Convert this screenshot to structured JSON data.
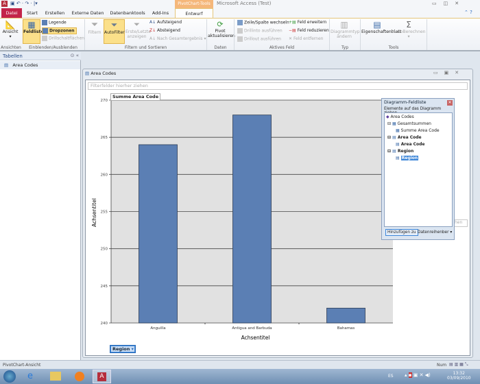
{
  "app": {
    "title": "Microsoft Access (Test)",
    "context_tab": "PivotChart-Tools"
  },
  "tabs": [
    "Datei",
    "Start",
    "Erstellen",
    "Externe Daten",
    "Datenbanktools",
    "Add-Ins",
    "Entwurf"
  ],
  "ribbon": {
    "ansicht": "Ansicht",
    "feldliste": "Feldliste",
    "legende": "Legende",
    "dropzonen": "Dropzonen",
    "drillschaltflaechen": "Drillschaltflächen",
    "filtern": "Filtern",
    "autofilter": "AutoFilter",
    "erste_letzte": "Erste/Letzte anzeigen",
    "aufsteigend": "Aufsteigend",
    "absteigend": "Absteigend",
    "nach_gesamt": "Nach Gesamtergebnis",
    "pivot": "Pivot aktualisieren",
    "zeile_spalte": "Zeile/Spalte wechseln",
    "drillinto": "Drillinto ausführen",
    "drillout": "Drillout ausführen",
    "feld_erweitern": "Feld erweitern",
    "feld_reduzieren": "Feld reduzieren",
    "feld_entfernen": "Feld entfernen",
    "diagrammtyp": "Diagrammtyp ändern",
    "eigenschaften": "Eigenschaftenblatt",
    "autoberechnen": "AutoBerechnen",
    "groups": [
      "Ansichten",
      "Einblenden/Ausblenden",
      "Filtern und Sortieren",
      "Daten",
      "Aktives Feld",
      "Typ",
      "Tools"
    ]
  },
  "nav": {
    "header": "Tabellen",
    "items": [
      "Area Codes"
    ]
  },
  "document": {
    "title": "Area Codes",
    "filter_placeholder": "Filterfelder hierher ziehen",
    "series_drop_partial": "hen",
    "region_button": "Region"
  },
  "chart_data": {
    "type": "bar",
    "data_field": "Summe Area Code",
    "categories": [
      "Anguilla",
      "Antigua and Barbuda",
      "Bahamas"
    ],
    "values": [
      264,
      268,
      242
    ],
    "xlabel": "Achsentitel",
    "ylabel": "Achsentitel",
    "ylim": [
      240,
      270
    ],
    "yticks": [
      240,
      245,
      250,
      255,
      260,
      265,
      270
    ],
    "bar_color": "#5b7fb4",
    "grid": true
  },
  "fieldlist": {
    "title": "Diagramm-Feldliste",
    "hint": "Elemente auf das Diagramm ziehen",
    "root": "Area Codes",
    "items": [
      {
        "label": "Gesamtsummen",
        "level": 1
      },
      {
        "label": "Summe Area Code",
        "level": 2
      },
      {
        "label": "Area Code",
        "level": 1,
        "bold": true
      },
      {
        "label": "Area Code",
        "level": 2,
        "bold": true
      },
      {
        "label": "Region",
        "level": 1,
        "bold": true
      },
      {
        "label": "Region",
        "level": 2,
        "bold": true,
        "selected": true
      }
    ],
    "add_button": "Hinzufügen zu",
    "target": "Datenreihenber"
  },
  "status": {
    "left": "PivotChart-Ansicht",
    "num": "Num"
  },
  "tray": {
    "lang": "ES",
    "time": "13:32",
    "date": "03/09/2010"
  }
}
